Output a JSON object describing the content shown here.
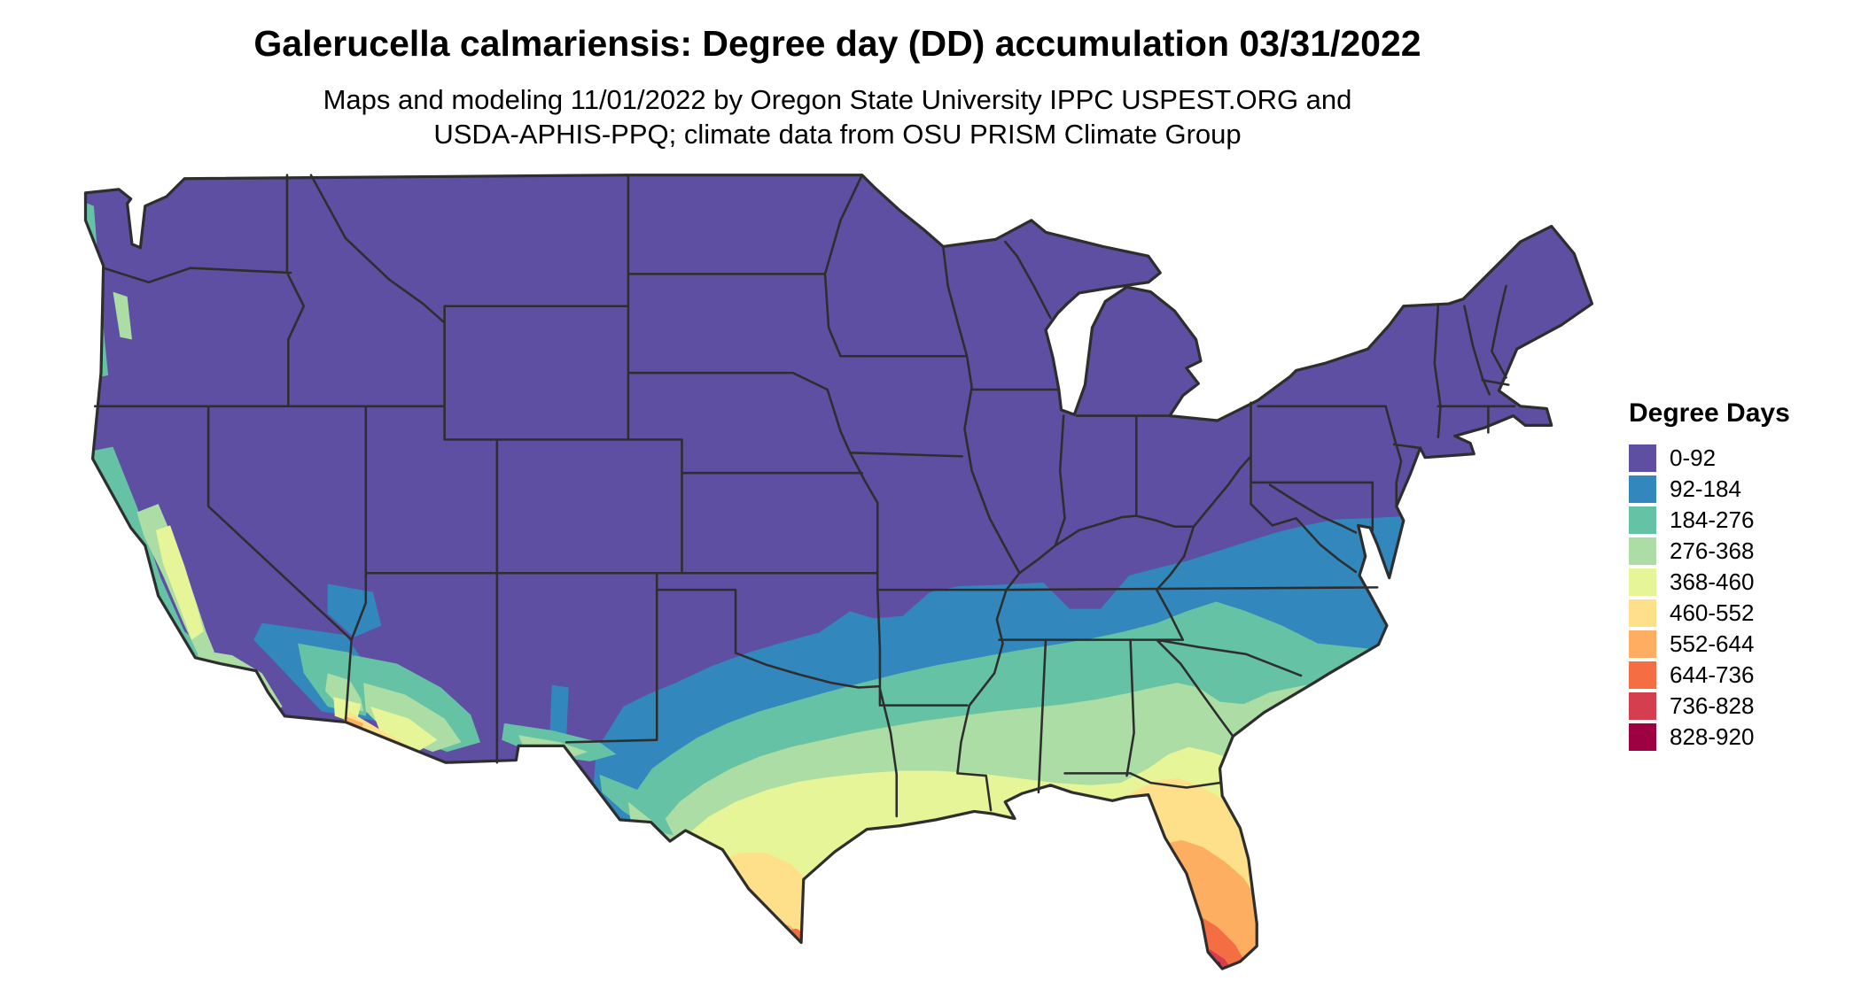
{
  "header": {
    "title": "Galerucella calmariensis: Degree day (DD) accumulation 03/31/2022",
    "subtitle_line1": "Maps and modeling 11/01/2022 by Oregon State University IPPC USPEST.ORG and",
    "subtitle_line2": "USDA-APHIS-PPQ; climate data from OSU PRISM Climate Group"
  },
  "legend": {
    "title": "Degree Days",
    "items": [
      {
        "label": "0-92",
        "color": "#5e4fa2"
      },
      {
        "label": "92-184",
        "color": "#3288bd"
      },
      {
        "label": "184-276",
        "color": "#66c2a5"
      },
      {
        "label": "276-368",
        "color": "#abdda4"
      },
      {
        "label": "368-460",
        "color": "#e6f598"
      },
      {
        "label": "460-552",
        "color": "#fee08b"
      },
      {
        "label": "552-644",
        "color": "#fdae61"
      },
      {
        "label": "644-736",
        "color": "#f46d43"
      },
      {
        "label": "736-828",
        "color": "#d53e4f"
      },
      {
        "label": "828-920",
        "color": "#9e0142"
      }
    ]
  },
  "map": {
    "border_color": "#2e2e2e",
    "water_color": "#ffffff"
  }
}
